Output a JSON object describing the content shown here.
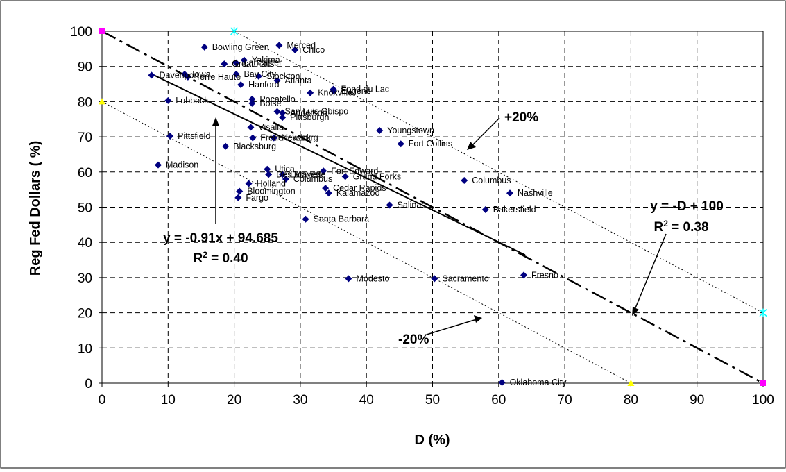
{
  "chart_data": {
    "type": "scatter",
    "xlabel": "D (%)",
    "ylabel": "Reg Fed Dollars ( %)",
    "xlim": [
      0,
      100
    ],
    "ylim": [
      0,
      100
    ],
    "x_ticks": [
      "0",
      "10",
      "20",
      "30",
      "40",
      "50",
      "60",
      "70",
      "80",
      "90",
      "100"
    ],
    "y_ticks": [
      "0",
      "10",
      "20",
      "30",
      "40",
      "50",
      "60",
      "70",
      "80",
      "90",
      "100"
    ],
    "grid": true,
    "legend": "none",
    "colors": {
      "points": "#000080",
      "endpoints_main": "#ff00ff",
      "endpoints_plus": "#00ffff",
      "endpoints_minus": "#ffff00"
    },
    "points": [
      {
        "label": "Bowling Green",
        "x": 15.5,
        "y": 95.5
      },
      {
        "label": "Merced",
        "x": 26.8,
        "y": 96
      },
      {
        "label": "Chico",
        "x": 29.2,
        "y": 94.7
      },
      {
        "label": "Yakima",
        "x": 21.5,
        "y": 91.8
      },
      {
        "label": "Lancaster",
        "x": 20.3,
        "y": 91
      },
      {
        "label": "Great Falls",
        "x": 18.5,
        "y": 90.7
      },
      {
        "label": "Davenport",
        "x": 7.5,
        "y": 87.5
      },
      {
        "label": "Iowa",
        "x": 12.5,
        "y": 87.8
      },
      {
        "label": "Terre Haute",
        "x": 13,
        "y": 87
      },
      {
        "label": "Bay City",
        "x": 20.3,
        "y": 87.8
      },
      {
        "label": "Stockton",
        "x": 23.7,
        "y": 87.2
      },
      {
        "label": "Atlanta",
        "x": 26.5,
        "y": 86
      },
      {
        "label": "Hanford",
        "x": 21,
        "y": 84.8
      },
      {
        "label": "Fond du Lac",
        "x": 35,
        "y": 83.5
      },
      {
        "label": "Knoxville",
        "x": 31.5,
        "y": 82.5
      },
      {
        "label": "Eugene",
        "x": 35,
        "y": 83
      },
      {
        "label": "Lubbock",
        "x": 10,
        "y": 80.3
      },
      {
        "label": "Pocatello",
        "x": 22.7,
        "y": 80.7
      },
      {
        "label": "Boise",
        "x": 22.7,
        "y": 79.5
      },
      {
        "label": "San Luis Obispo",
        "x": 26.5,
        "y": 77.2
      },
      {
        "label": "Anderson",
        "x": 27.3,
        "y": 76.8
      },
      {
        "label": "Pittsburgh",
        "x": 27.3,
        "y": 75.5
      },
      {
        "label": "Visalia",
        "x": 22.5,
        "y": 72.7
      },
      {
        "label": "Youngstown",
        "x": 42,
        "y": 71.8
      },
      {
        "label": "Pittsfield",
        "x": 10.3,
        "y": 70.2
      },
      {
        "label": "Fredericksburg",
        "x": 22.8,
        "y": 69.7
      },
      {
        "label": "Newark",
        "x": 26,
        "y": 69.7
      },
      {
        "label": "Fort Collins",
        "x": 45.2,
        "y": 68
      },
      {
        "label": "Blacksburg",
        "x": 18.7,
        "y": 67.3
      },
      {
        "label": "Madison",
        "x": 8.5,
        "y": 62
      },
      {
        "label": "Utica",
        "x": 25,
        "y": 60.8
      },
      {
        "label": "Fort Edward",
        "x": 33.5,
        "y": 60.3
      },
      {
        "label": "Des Moines",
        "x": 25.2,
        "y": 59.3
      },
      {
        "label": "Lafayette",
        "x": 27.3,
        "y": 59.3
      },
      {
        "label": "Grand Forks",
        "x": 36.8,
        "y": 58.7
      },
      {
        "label": "Columbus",
        "x": 27.8,
        "y": 58
      },
      {
        "label": "Columbus",
        "x": 54.8,
        "y": 57.6
      },
      {
        "label": "Holland",
        "x": 22.2,
        "y": 56.7
      },
      {
        "label": "Cedar Rapids",
        "x": 33.8,
        "y": 55.4
      },
      {
        "label": "Bloomington",
        "x": 20.8,
        "y": 54.5
      },
      {
        "label": "Nashville",
        "x": 61.7,
        "y": 54
      },
      {
        "label": "Kalamazoo",
        "x": 34.3,
        "y": 54
      },
      {
        "label": "Fargo",
        "x": 20.6,
        "y": 52.7
      },
      {
        "label": "Salinas",
        "x": 43.5,
        "y": 50.6
      },
      {
        "label": "Bakersfield",
        "x": 58,
        "y": 49.3
      },
      {
        "label": "Santa Barbara",
        "x": 30.8,
        "y": 46.6
      },
      {
        "label": "Modesto",
        "x": 37.3,
        "y": 29.7
      },
      {
        "label": "Sacramento",
        "x": 50.3,
        "y": 29.7
      },
      {
        "label": "Fresno",
        "x": 63.8,
        "y": 30.7
      },
      {
        "label": "Oklahoma City",
        "x": 60.5,
        "y": 0.2
      }
    ],
    "lines": [
      {
        "style": "solid",
        "slope": -0.91,
        "intercept": 94.685,
        "x_range": [
          7.5,
          64
        ]
      },
      {
        "style": "dash-dot",
        "slope": -1,
        "intercept": 100,
        "x_range": [
          0,
          100
        ]
      },
      {
        "style": "dotted",
        "slope": -1,
        "intercept": 120,
        "x_range": [
          20,
          100
        ]
      },
      {
        "style": "dotted",
        "slope": -1,
        "intercept": 80,
        "x_range": [
          0,
          80
        ]
      }
    ],
    "annotations": {
      "fit_equation": "y = -0.91x + 94.685",
      "fit_r2": "R",
      "fit_r2_value": " = 0.40",
      "ref_equation": "y = -D + 100",
      "ref_r2": "R",
      "ref_r2_value": " = 0.38",
      "plus_band": "+20%",
      "minus_band": "-20%",
      "r2_superscript": "2"
    }
  }
}
